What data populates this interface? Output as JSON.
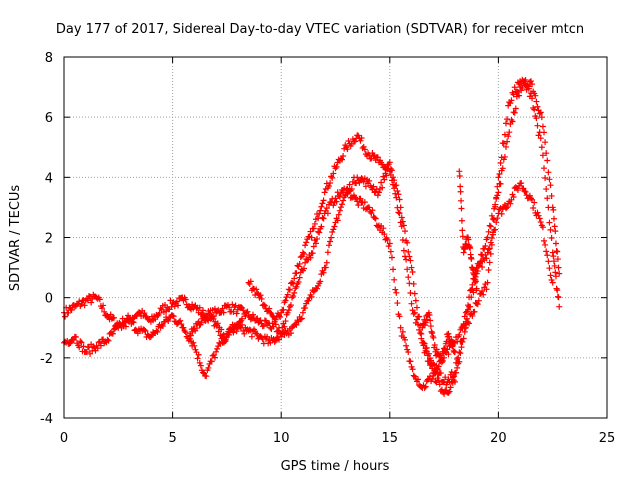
{
  "chart_data": {
    "type": "scatter",
    "title": "Day 177 of 2017, Sidereal Day-to-day VTEC variation (SDTVAR) for receiver mtcn",
    "xlabel": "GPS time / hours",
    "ylabel": "SDTVAR / TECUs",
    "xlim": [
      0,
      25
    ],
    "ylim": [
      -4,
      8
    ],
    "xticks": [
      "0",
      "5",
      "10",
      "15",
      "20",
      "25"
    ],
    "yticks": [
      "-4",
      "-2",
      "0",
      "2",
      "4",
      "6",
      "8"
    ],
    "grid": true,
    "marker": "+",
    "series": [
      {
        "name": "SDTVAR",
        "color": "#ff0000",
        "curves": [
          {
            "x": [
              0.0,
              0.5,
              1.0,
              1.5,
              2.0,
              2.5,
              3.0,
              3.5,
              4.0,
              4.5,
              5.0,
              5.5,
              6.0,
              6.5,
              7.0,
              7.5,
              8.0,
              8.5,
              9.0,
              9.5,
              10.0,
              10.5,
              11.0,
              11.5,
              12.0,
              12.5,
              13.0,
              13.5,
              14.0,
              14.5,
              15.0,
              15.5,
              16.0,
              16.5,
              17.0,
              17.5,
              18.0,
              18.5,
              19.0,
              19.5,
              20.0,
              20.5,
              21.0,
              21.5,
              22.0,
              22.5,
              22.8
            ],
            "y": [
              -0.5,
              -0.3,
              -0.1,
              0.0,
              -0.6,
              -0.9,
              -0.7,
              -0.5,
              -0.8,
              -0.4,
              -0.2,
              -0.1,
              -0.3,
              -0.6,
              -0.5,
              -0.3,
              -0.4,
              -0.6,
              -0.8,
              -1.0,
              -0.5,
              0.5,
              1.5,
              2.3,
              3.5,
              4.3,
              5.0,
              5.4,
              4.8,
              4.5,
              4.2,
              2.5,
              -0.2,
              -1.5,
              -2.2,
              -2.8,
              -2.5,
              -0.5,
              1.0,
              2.0,
              3.5,
              5.5,
              7.0,
              7.2,
              6.0,
              3.0,
              0.8
            ]
          },
          {
            "x": [
              0.0,
              0.5,
              1.0,
              1.5,
              2.0,
              2.5,
              3.0,
              3.5,
              4.0,
              4.5,
              5.0,
              5.5,
              6.0,
              6.5,
              7.0,
              7.5,
              8.0,
              8.5,
              9.0,
              9.5,
              10.0,
              10.5,
              11.0,
              11.5,
              12.0,
              12.5,
              13.0,
              13.5,
              14.0,
              14.5,
              15.0,
              15.5,
              16.0,
              16.5,
              17.0,
              17.5,
              18.0,
              18.5,
              19.0,
              19.5,
              20.0,
              20.5,
              21.0,
              21.5,
              22.0,
              22.5
            ],
            "y": [
              -1.5,
              -1.3,
              -1.8,
              -1.6,
              -1.4,
              -1.0,
              -0.8,
              -1.1,
              -1.3,
              -0.9,
              -0.6,
              -1.0,
              -1.6,
              -2.6,
              -1.8,
              -1.2,
              -1.0,
              -1.1,
              -1.3,
              -1.5,
              -1.2,
              0.0,
              0.9,
              1.7,
              2.8,
              3.3,
              3.6,
              3.2,
              3.0,
              2.4,
              1.8,
              -1.0,
              -2.3,
              -3.0,
              -2.6,
              -2.0,
              -1.5,
              -0.8,
              0.8,
              1.5,
              2.8,
              3.2,
              3.8,
              3.3,
              2.4,
              0.5
            ]
          },
          {
            "x": [
              8.5,
              9.0,
              9.5,
              10.0,
              10.5,
              11.0,
              11.5,
              12.0,
              12.5,
              13.0,
              13.5,
              14.0,
              14.5,
              15.0,
              15.5,
              16.0,
              16.5,
              17.0,
              17.5,
              18.0,
              18.5,
              19.0,
              19.5,
              20.0,
              20.5,
              21.0,
              21.5,
              22.0,
              22.5,
              22.8
            ],
            "y": [
              0.5,
              0.0,
              -0.5,
              -1.3,
              -1.0,
              -0.5,
              0.2,
              1.0,
              2.5,
              3.5,
              4.0,
              3.8,
              3.5,
              4.5,
              3.0,
              1.0,
              -1.5,
              -2.5,
              -3.2,
              -2.8,
              -1.0,
              -0.2,
              0.5,
              4.0,
              6.5,
              7.2,
              6.8,
              5.0,
              1.5,
              -0.3
            ]
          },
          {
            "x": [
              5.8,
              6.2,
              6.6,
              7.0,
              7.4,
              7.8,
              8.2
            ],
            "y": [
              -1.2,
              -0.8,
              -0.6,
              -0.9,
              -1.4,
              -1.0,
              -0.7
            ]
          },
          {
            "x": [
              16.5,
              16.8,
              17.1,
              17.4,
              17.7,
              18.0
            ],
            "y": [
              -1.0,
              -0.5,
              -1.8,
              -2.0,
              -1.2,
              -1.8
            ]
          },
          {
            "x": [
              18.2,
              18.4,
              18.6,
              18.8,
              19.0
            ],
            "y": [
              4.2,
              1.5,
              2.0,
              1.0,
              0.3
            ]
          }
        ]
      }
    ]
  }
}
